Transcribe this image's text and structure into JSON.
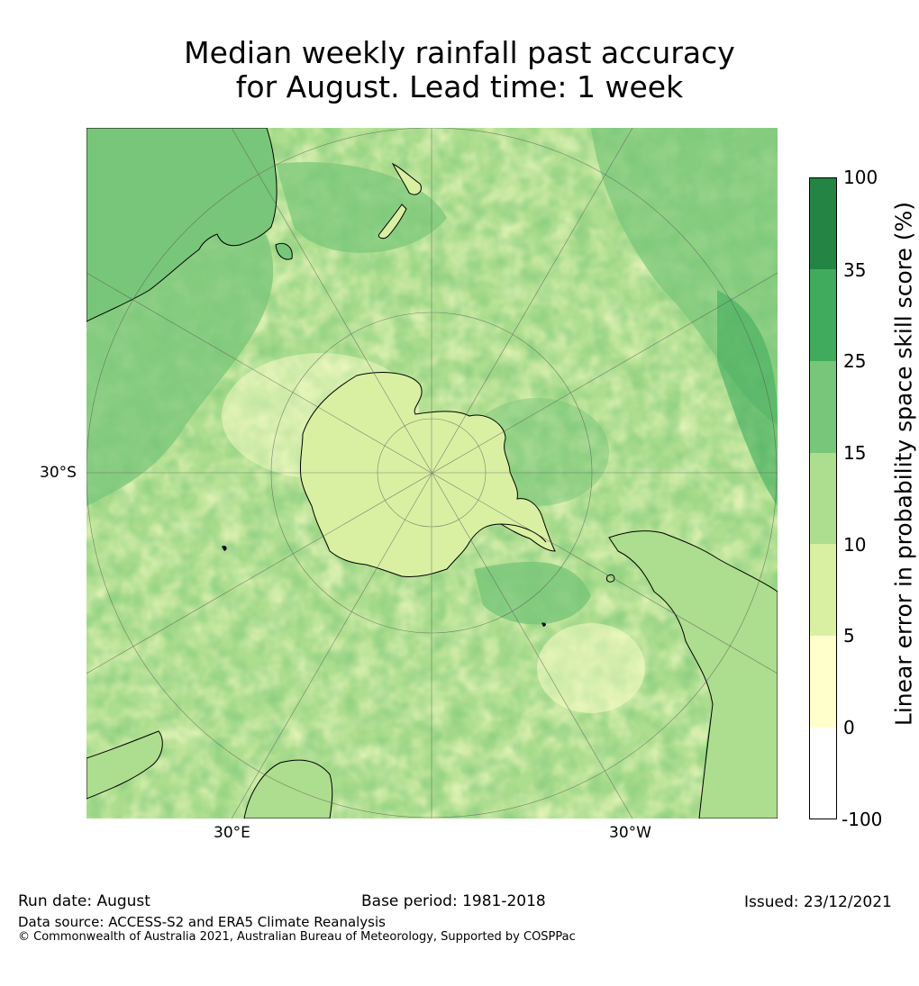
{
  "title_line1": "Median weekly rainfall past accuracy",
  "title_line2": "for August. Lead time: 1 week",
  "map": {
    "projection": "south-polar-stereographic",
    "graticule_labels": {
      "lat": "30°S",
      "lon_east": "30°E",
      "lon_west": "30°W"
    },
    "continents": [
      "Antarctica",
      "Australia",
      "South America",
      "Africa",
      "New Zealand"
    ]
  },
  "colorbar": {
    "title": "Linear error in probability space skill score (%)",
    "labels": [
      "100",
      "35",
      "25",
      "15",
      "10",
      "5",
      "0",
      "-100"
    ],
    "colors": [
      "#238443",
      "#41ab5d",
      "#78c679",
      "#addd8e",
      "#d9f0a3",
      "#ffffcc",
      "#ffffff"
    ]
  },
  "footer": {
    "run_date": "Run date: August",
    "base_period": "Base period: 1981-2018",
    "issued": "Issued: 23/12/2021",
    "data_source": "Data source: ACCESS-S2 and ERA5 Climate Reanalysis",
    "copyright": "© Commonwealth of Australia 2021, Australian Bureau of Meteorology, Supported by COSPPac"
  }
}
